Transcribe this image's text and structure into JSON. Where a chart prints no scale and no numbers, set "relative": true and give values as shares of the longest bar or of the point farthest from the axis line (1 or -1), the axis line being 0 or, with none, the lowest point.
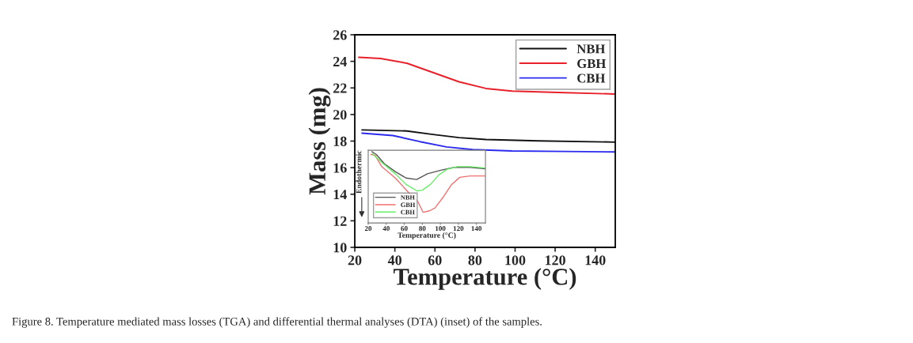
{
  "chart_data": [
    {
      "type": "line",
      "xlabel": "Temperature (°C)",
      "ylabel": "Mass (mg)",
      "xlim": [
        20,
        150
      ],
      "ylim": [
        10,
        26
      ],
      "xticks": [
        20,
        40,
        60,
        80,
        100,
        120,
        140
      ],
      "yticks": [
        10,
        12,
        14,
        16,
        18,
        20,
        22,
        24,
        26
      ],
      "legend": "top right",
      "grid": false,
      "series": [
        {
          "name": "NBH",
          "color": "#111111",
          "x": [
            23.6,
            46,
            59,
            72,
            85.4,
            111.7,
            150
          ],
          "values": [
            18.84,
            18.76,
            18.5,
            18.26,
            18.12,
            18.02,
            17.92
          ]
        },
        {
          "name": "GBH",
          "color": "#e8202a",
          "x": [
            22,
            32.8,
            46,
            59,
            72,
            85.4,
            98.5,
            111.7,
            124.9,
            150
          ],
          "values": [
            24.3,
            24.22,
            23.86,
            23.16,
            22.46,
            21.96,
            21.76,
            21.7,
            21.64,
            21.54
          ]
        },
        {
          "name": "CBH",
          "color": "#2b2bef",
          "x": [
            23.6,
            39,
            52.5,
            65.7,
            78.8,
            98.5,
            124.9,
            150
          ],
          "values": [
            18.6,
            18.42,
            17.96,
            17.56,
            17.36,
            17.26,
            17.22,
            17.18
          ]
        }
      ],
      "annotations": [
        "Figure 8. Temperature mediated mass losses (TGA) and differential thermal analyses (DTA) (inset) of the samples."
      ]
    },
    {
      "type": "line",
      "xlabel": "Temperature (°C)",
      "ylabel": "Endothermic",
      "xlim": [
        20,
        150
      ],
      "xticks": [
        20,
        40,
        60,
        80,
        100,
        120,
        140
      ],
      "relative": true,
      "tick_labels": "x",
      "legend": "bottom left",
      "grid": false,
      "series": [
        {
          "name": "NBH",
          "color": "#555555",
          "x": [
            24,
            29,
            38,
            50,
            62,
            73.7,
            85.7,
            100.6,
            115.5,
            133,
            150
          ],
          "values": [
            1.0,
            0.96,
            0.83,
            0.72,
            0.63,
            0.61,
            0.69,
            0.74,
            0.78,
            0.78,
            0.76
          ]
        },
        {
          "name": "GBH",
          "color": "#f07070",
          "x": [
            23,
            27.5,
            35,
            50,
            64.5,
            75,
            80.8,
            88,
            94,
            103.6,
            112.5,
            121.5,
            133,
            150
          ],
          "values": [
            0.96,
            0.95,
            0.79,
            0.63,
            0.43,
            0.3,
            0.15,
            0.17,
            0.21,
            0.37,
            0.54,
            0.64,
            0.66,
            0.66
          ]
        },
        {
          "name": "CBH",
          "color": "#66ee66",
          "x": [
            24.5,
            35,
            50,
            62,
            74,
            80,
            89,
            98,
            107,
            118.5,
            133,
            150
          ],
          "values": [
            0.97,
            0.85,
            0.69,
            0.54,
            0.45,
            0.46,
            0.54,
            0.67,
            0.75,
            0.79,
            0.79,
            0.77
          ]
        }
      ]
    }
  ]
}
